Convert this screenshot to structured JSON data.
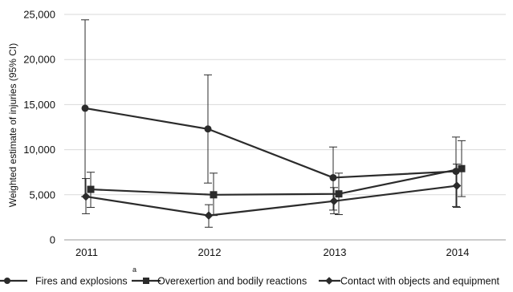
{
  "chart_data": {
    "type": "line",
    "title": "",
    "xlabel": "",
    "ylabel": "Weighted estimate of injuries (95% CI)",
    "ylim": [
      0,
      25000
    ],
    "yticks": [
      0,
      5000,
      10000,
      15000,
      20000,
      25000
    ],
    "ytick_labels": [
      "0",
      "5,000",
      "10,000",
      "15,000",
      "20,000",
      "25,000"
    ],
    "categories": [
      "2011",
      "2012",
      "2013",
      "2014"
    ],
    "grid": "horizontal",
    "legend_position": "bottom",
    "color": "#2b2b2b",
    "footnote_marker": "a",
    "series": [
      {
        "name": "Fires and explosions",
        "marker": "circle",
        "values": [
          14600,
          12300,
          6900,
          7600
        ],
        "ci_low": [
          4800,
          6300,
          3300,
          3700
        ],
        "ci_high": [
          24400,
          18300,
          10300,
          11400
        ]
      },
      {
        "name": "Overexertion and bodily reactions",
        "marker": "square",
        "values": [
          5600,
          5000,
          5100,
          7900
        ],
        "ci_low": [
          3600,
          2700,
          2800,
          4800
        ],
        "ci_high": [
          7500,
          7400,
          7400,
          11000
        ]
      },
      {
        "name": "Contact with objects and equipment",
        "marker": "diamond",
        "values": [
          4800,
          2700,
          4300,
          6000
        ],
        "ci_low": [
          2900,
          1400,
          2900,
          3600
        ],
        "ci_high": [
          6800,
          3900,
          5800,
          8400
        ]
      }
    ]
  }
}
